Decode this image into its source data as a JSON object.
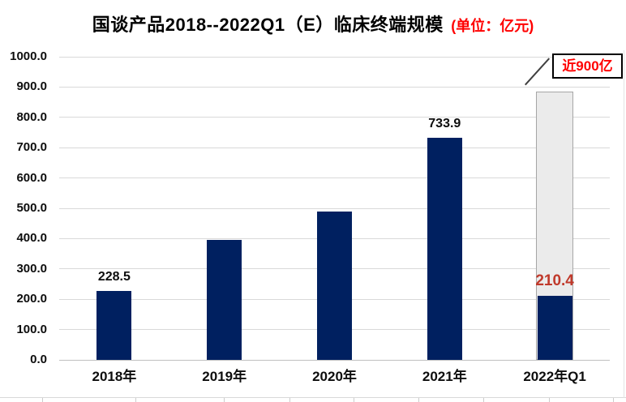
{
  "page": {
    "background": "#FFFFFF"
  },
  "chart_data": {
    "type": "bar",
    "title": "国谈产品2018--2022Q1（E）临床终端规模",
    "unit_label": "(单位：亿元)",
    "categories": [
      "2018年",
      "2019年",
      "2020年",
      "2021年",
      "2022年Q1"
    ],
    "values": [
      228.5,
      395.7,
      490.0,
      733.9,
      210.4
    ],
    "data_labels": [
      "228.5",
      null,
      null,
      "733.9",
      "210.4"
    ],
    "estimate_overlay": {
      "category": "2022年Q1",
      "value": 885,
      "annotation": "近900亿"
    },
    "ylim": [
      0,
      1000
    ],
    "ytick_step": 100,
    "yticks": [
      "0.0",
      "100.0",
      "200.0",
      "300.0",
      "400.0",
      "500.0",
      "600.0",
      "700.0",
      "800.0",
      "900.0",
      "1000.0"
    ],
    "grid": true,
    "legend": "none",
    "colors": {
      "bar": "#002060",
      "estimate_fill": "#EBEBEB",
      "estimate_border": "#A6A6A6",
      "title_text": "#000000",
      "unit_red": "#FF0000",
      "value_label": "#0d0d0d",
      "estimate_value_red": "#C0392B",
      "gridline": "#D9D9D9",
      "axis_line": "#BFBFBF"
    }
  }
}
